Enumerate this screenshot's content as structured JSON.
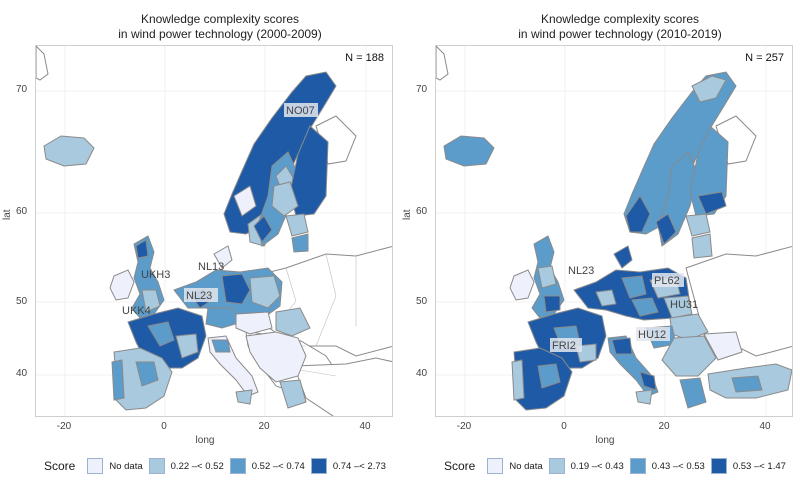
{
  "colors": {
    "no_data": "#eef0fb",
    "c1": "#a9c9de",
    "c2": "#5b9ccb",
    "c3": "#1f5aa6",
    "border": "#888888",
    "label_bg": "#e3e7ef"
  },
  "axis": {
    "x_label": "long",
    "y_label": "lat"
  },
  "panels": [
    {
      "title_line1": "Knowledge complexity scores",
      "title_line2": "in wind power technology (2000-2009)",
      "n_label": "N =  188",
      "y_ticks": [
        "70",
        "60",
        "50",
        "40"
      ],
      "x_ticks": [
        "-20",
        "0",
        "20",
        "40"
      ],
      "region_labels": [
        "NO07",
        "UKH3",
        "NL13",
        "NL23",
        "UKK4"
      ],
      "legend_title": "Score",
      "legend": [
        "No data",
        "0.22 –< 0.52",
        "0.52 –< 0.74",
        "0.74 –< 2.73"
      ]
    },
    {
      "title_line1": "Knowledge complexity scores",
      "title_line2": "in wind power technology (2010-2019)",
      "n_label": "N =  257",
      "y_ticks": [
        "70",
        "60",
        "50",
        "40"
      ],
      "x_ticks": [
        "-20",
        "0",
        "20",
        "40"
      ],
      "region_labels": [
        "NL23",
        "PL62",
        "HU31",
        "HU12",
        "FRI2"
      ],
      "legend_title": "Score",
      "legend": [
        "No data",
        "0.19 –< 0.43",
        "0.43 –< 0.53",
        "0.53 –< 1.47"
      ]
    }
  ]
}
